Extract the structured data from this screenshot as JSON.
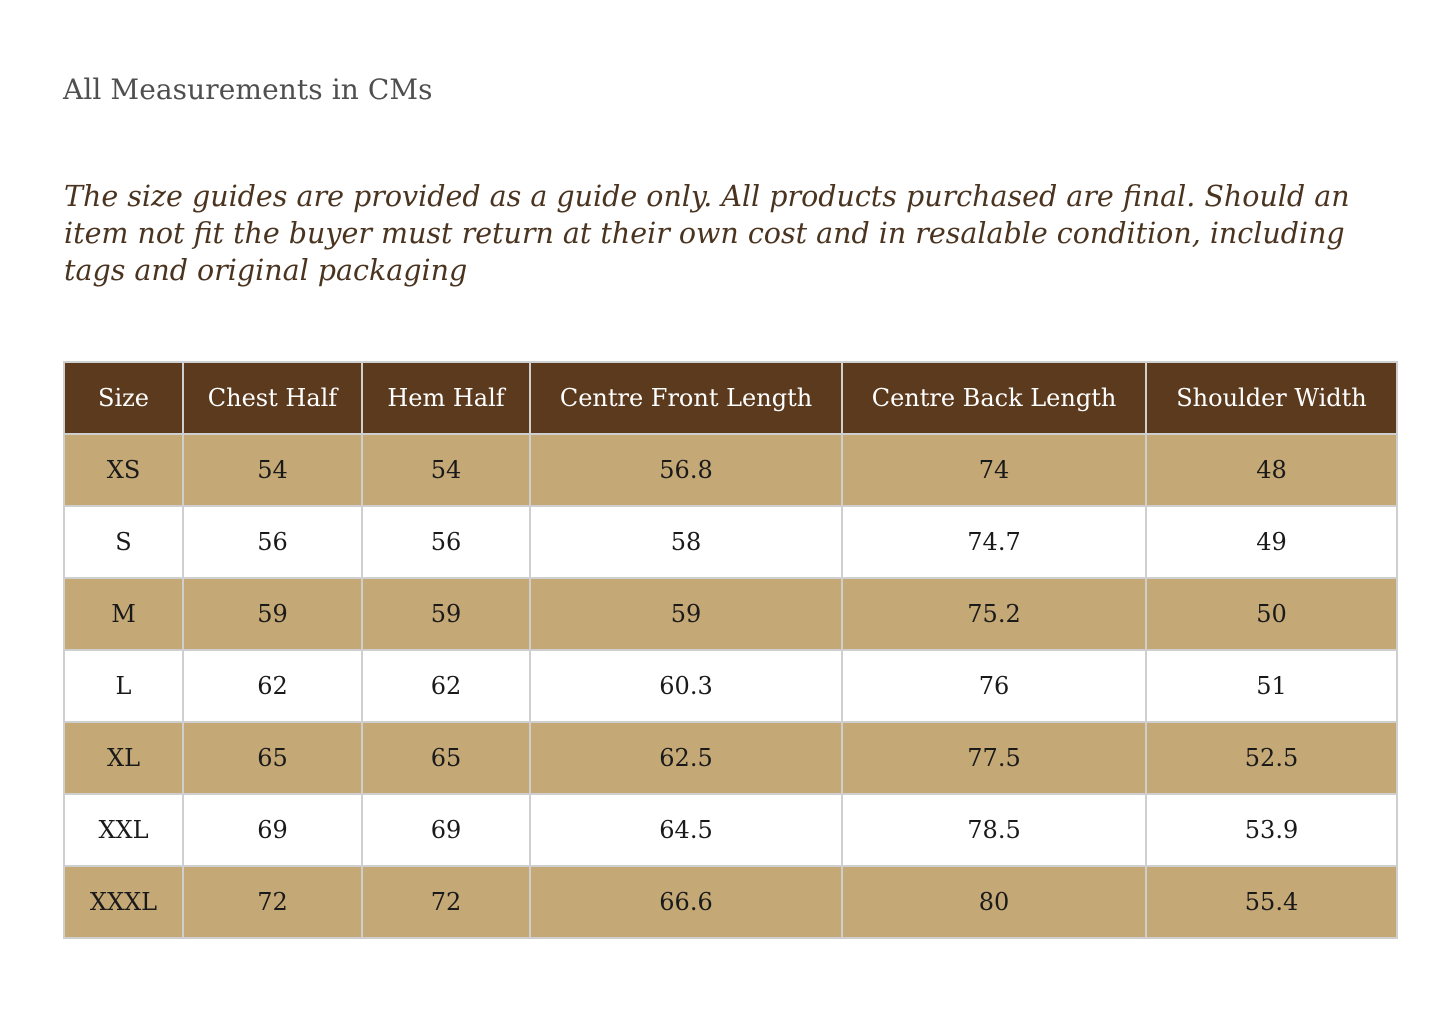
{
  "heading": "All Measurements in CMs",
  "disclaimer": "The size guides are provided as a guide only. All products purchased are final. Should an item not fit the buyer must return at their own cost and in resalable condition, including tags and original packaging",
  "colors": {
    "header_background": "#5c3a1e",
    "shaded_row": "#c4a876",
    "plain_row": "#ffffff"
  },
  "table": {
    "columns": [
      "Size",
      "Chest Half",
      "Hem Half",
      "Centre Front Length",
      "Centre Back Length",
      "Shoulder Width"
    ],
    "rows": [
      [
        "XS",
        "54",
        "54",
        "56.8",
        "74",
        "48"
      ],
      [
        "S",
        "56",
        "56",
        "58",
        "74.7",
        "49"
      ],
      [
        "M",
        "59",
        "59",
        "59",
        "75.2",
        "50"
      ],
      [
        "L",
        "62",
        "62",
        "60.3",
        "76",
        "51"
      ],
      [
        "XL",
        "65",
        "65",
        "62.5",
        "77.5",
        "52.5"
      ],
      [
        "XXL",
        "69",
        "69",
        "64.5",
        "78.5",
        "53.9"
      ],
      [
        "XXXL",
        "72",
        "72",
        "66.6",
        "80",
        "55.4"
      ]
    ]
  }
}
